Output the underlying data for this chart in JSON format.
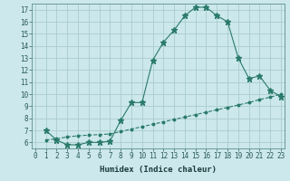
{
  "xlabel": "Humidex (Indice chaleur)",
  "line1_x": [
    1,
    2,
    3,
    4,
    5,
    6,
    7,
    8,
    9,
    10,
    11,
    12,
    13,
    14,
    15,
    16,
    17,
    18,
    19,
    20,
    21,
    22,
    23
  ],
  "line1_y": [
    7.0,
    6.2,
    5.8,
    5.8,
    6.0,
    6.0,
    6.1,
    7.8,
    9.3,
    9.3,
    12.8,
    14.3,
    15.3,
    16.5,
    17.2,
    17.2,
    16.5,
    16.0,
    13.0,
    11.3,
    11.5,
    10.3,
    9.8
  ],
  "line2_x": [
    1,
    2,
    3,
    4,
    5,
    6,
    7,
    8,
    9,
    10,
    11,
    12,
    13,
    14,
    15,
    16,
    17,
    18,
    19,
    20,
    21,
    22,
    23
  ],
  "line2_y": [
    6.2,
    6.3,
    6.45,
    6.55,
    6.6,
    6.65,
    6.7,
    6.9,
    7.1,
    7.3,
    7.5,
    7.7,
    7.9,
    8.1,
    8.3,
    8.5,
    8.7,
    8.9,
    9.1,
    9.3,
    9.55,
    9.75,
    10.0
  ],
  "line_color": "#2a7a6a",
  "bg_color": "#cce8ec",
  "grid_color": "#aacccc",
  "ylim": [
    5.5,
    17.5
  ],
  "xlim": [
    -0.3,
    23.3
  ],
  "yticks": [
    6,
    7,
    8,
    9,
    10,
    11,
    12,
    13,
    14,
    15,
    16,
    17
  ],
  "xticks": [
    0,
    1,
    2,
    3,
    4,
    5,
    6,
    7,
    8,
    9,
    10,
    11,
    12,
    13,
    14,
    15,
    16,
    17,
    18,
    19,
    20,
    21,
    22,
    23
  ],
  "xtick_labels": [
    "0",
    "1",
    "2",
    "3",
    "4",
    "5",
    "6",
    "7",
    "8",
    "9",
    "10",
    "11",
    "12",
    "13",
    "14",
    "15",
    "16",
    "17",
    "18",
    "19",
    "20",
    "21",
    "22",
    "23"
  ],
  "ytick_labels": [
    "6",
    "7",
    "8",
    "9",
    "10",
    "11",
    "12",
    "13",
    "14",
    "15",
    "16",
    "17"
  ],
  "tick_fontsize": 5.5,
  "xlabel_fontsize": 6.5
}
